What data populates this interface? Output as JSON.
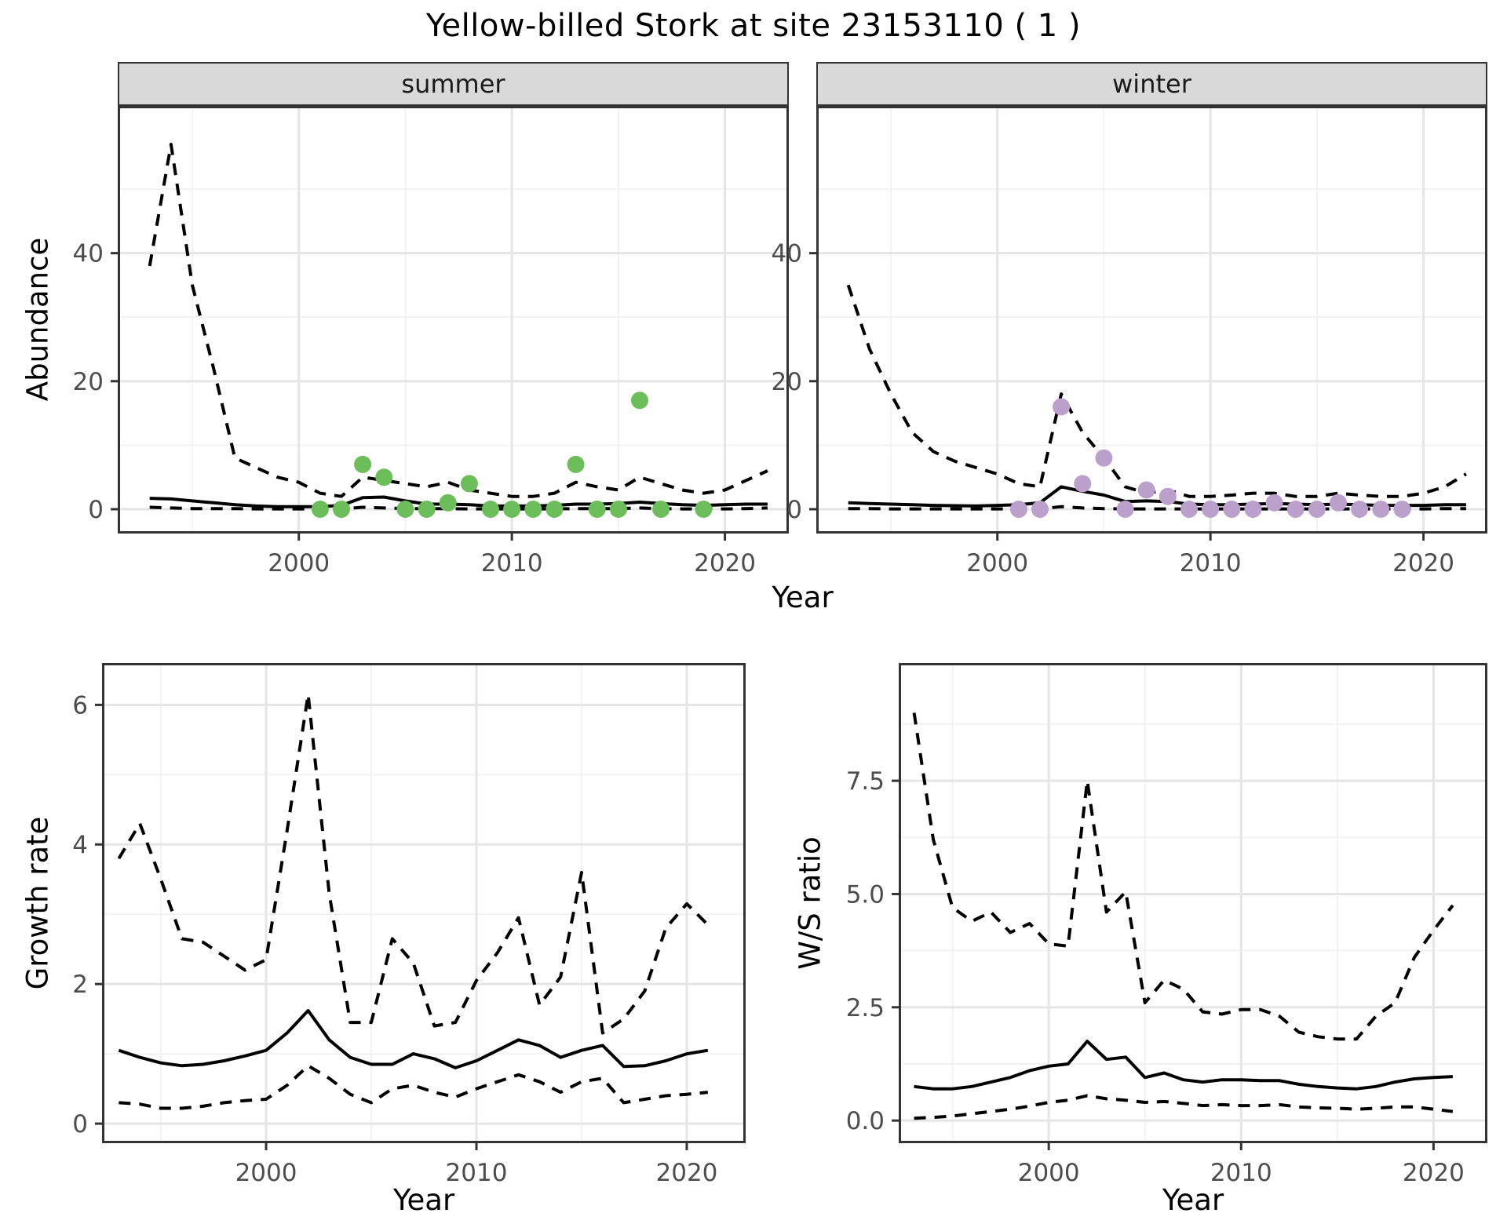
{
  "title": "Yellow-billed Stork at site 23153110 ( 1 )",
  "colors": {
    "panel_bg": "#ffffff",
    "grid_major": "#e5e5e5",
    "grid_minor": "#f0f0f0",
    "border": "#333333",
    "line": "#000000",
    "strip_bg": "#d9d9d9",
    "point_summer": "#6cbe5b",
    "point_winter": "#bca0cc"
  },
  "top_row": {
    "ylabel": "Abundance",
    "xlabel": "Year",
    "facets": [
      "summer",
      "winter"
    ]
  },
  "bottom_row": {
    "left_ylabel": "Growth rate",
    "left_xlabel": "Year",
    "right_ylabel": "W/S ratio",
    "right_xlabel": "Year"
  },
  "chart_data": [
    {
      "id": "abundance-summer",
      "type": "line",
      "facet": "summer",
      "title": "Abundance - summer facet",
      "xlabel": "Year",
      "ylabel": "Abundance",
      "xlim": [
        1991.5,
        2023
      ],
      "ylim": [
        -3.8,
        63
      ],
      "xticks": [
        2000,
        2010,
        2020
      ],
      "xtick_labels": [
        "2000",
        "2010",
        "2020"
      ],
      "xminor": [
        1995,
        2005,
        2015
      ],
      "yticks": [
        0,
        20,
        40
      ],
      "ytick_labels": [
        "0",
        "20",
        "40"
      ],
      "yminor": [
        10,
        30,
        50
      ],
      "series": [
        {
          "name": "upper_ci",
          "style": "dashed",
          "x": [
            1993,
            1994,
            1995,
            1996,
            1997,
            1998,
            1999,
            2000,
            2001,
            2002,
            2003,
            2004,
            2005,
            2006,
            2007,
            2008,
            2009,
            2010,
            2011,
            2012,
            2013,
            2014,
            2015,
            2016,
            2017,
            2018,
            2019,
            2020,
            2021,
            2022
          ],
          "y": [
            38,
            57,
            35,
            22,
            8,
            6.5,
            5,
            4.2,
            2.5,
            2,
            5,
            4.5,
            4,
            3.5,
            4.2,
            3,
            2.5,
            2,
            2,
            2.5,
            4.2,
            3.5,
            3,
            5,
            4,
            3,
            2.5,
            3,
            4.5,
            6
          ]
        },
        {
          "name": "median",
          "style": "solid",
          "x": [
            1993,
            1994,
            1995,
            1996,
            1997,
            1998,
            1999,
            2000,
            2001,
            2002,
            2003,
            2004,
            2005,
            2006,
            2007,
            2008,
            2009,
            2010,
            2011,
            2012,
            2013,
            2014,
            2015,
            2016,
            2017,
            2018,
            2019,
            2020,
            2021,
            2022
          ],
          "y": [
            1.7,
            1.6,
            1.3,
            1.0,
            0.7,
            0.5,
            0.4,
            0.4,
            0.4,
            0.6,
            1.8,
            1.9,
            1.3,
            0.8,
            0.8,
            0.7,
            0.5,
            0.5,
            0.5,
            0.6,
            0.8,
            0.8,
            0.9,
            1.1,
            0.9,
            0.7,
            0.6,
            0.7,
            0.8,
            0.8
          ]
        },
        {
          "name": "lower_ci",
          "style": "dashed",
          "x": [
            1993,
            1994,
            1995,
            1996,
            1997,
            1998,
            1999,
            2000,
            2001,
            2002,
            2003,
            2004,
            2005,
            2006,
            2007,
            2008,
            2009,
            2010,
            2011,
            2012,
            2013,
            2014,
            2015,
            2016,
            2017,
            2018,
            2019,
            2020,
            2021,
            2022
          ],
          "y": [
            0.3,
            0.2,
            0.1,
            0.1,
            0.1,
            0.05,
            0.05,
            0.05,
            0.05,
            0.05,
            0.3,
            0.2,
            0.1,
            0.1,
            0.1,
            0.05,
            0.05,
            0.05,
            0.05,
            0.05,
            0.1,
            0.1,
            0.1,
            0.2,
            0.1,
            0.05,
            0.05,
            0.05,
            0.1,
            0.2
          ]
        }
      ],
      "points": {
        "name": "observed-counts-summer",
        "color": "#6cbe5b",
        "x": [
          2001,
          2002,
          2003,
          2004,
          2005,
          2006,
          2007,
          2008,
          2009,
          2010,
          2011,
          2012,
          2013,
          2014,
          2015,
          2016,
          2017,
          2019
        ],
        "y": [
          0,
          0,
          7,
          5,
          0,
          0,
          1,
          4,
          0,
          0,
          0,
          0,
          7,
          0,
          0,
          17,
          0,
          0
        ]
      }
    },
    {
      "id": "abundance-winter",
      "type": "line",
      "facet": "winter",
      "title": "Abundance - winter facet",
      "xlabel": "Year",
      "ylabel": "Abundance",
      "xlim": [
        1991.5,
        2023
      ],
      "ylim": [
        -3.8,
        63
      ],
      "xticks": [
        2000,
        2010,
        2020
      ],
      "xtick_labels": [
        "2000",
        "2010",
        "2020"
      ],
      "xminor": [
        1995,
        2005,
        2015
      ],
      "yticks": [
        0,
        20,
        40
      ],
      "ytick_labels": [
        "0",
        "20",
        "40"
      ],
      "yminor": [
        10,
        30,
        50
      ],
      "series": [
        {
          "name": "upper_ci",
          "style": "dashed",
          "x": [
            1993,
            1994,
            1995,
            1996,
            1997,
            1998,
            1999,
            2000,
            2001,
            2002,
            2003,
            2004,
            2005,
            2006,
            2007,
            2008,
            2009,
            2010,
            2011,
            2012,
            2013,
            2014,
            2015,
            2016,
            2017,
            2018,
            2019,
            2020,
            2021,
            2022
          ],
          "y": [
            35,
            25,
            18,
            12,
            9,
            7.5,
            6.5,
            5.5,
            4,
            3.5,
            18,
            12,
            8,
            3.5,
            2.5,
            3,
            2,
            2,
            2.2,
            2.5,
            2.5,
            2,
            2,
            2.5,
            2.2,
            2,
            2,
            2.5,
            3.5,
            5.5
          ]
        },
        {
          "name": "median",
          "style": "solid",
          "x": [
            1993,
            1994,
            1995,
            1996,
            1997,
            1998,
            1999,
            2000,
            2001,
            2002,
            2003,
            2004,
            2005,
            2006,
            2007,
            2008,
            2009,
            2010,
            2011,
            2012,
            2013,
            2014,
            2015,
            2016,
            2017,
            2018,
            2019,
            2020,
            2021,
            2022
          ],
          "y": [
            1.0,
            0.9,
            0.8,
            0.7,
            0.6,
            0.55,
            0.5,
            0.6,
            0.7,
            1.0,
            3.5,
            2.8,
            2.2,
            1.2,
            1.3,
            1.2,
            0.8,
            0.7,
            0.7,
            0.8,
            0.9,
            0.8,
            0.7,
            0.8,
            0.7,
            0.6,
            0.6,
            0.6,
            0.7,
            0.7
          ]
        },
        {
          "name": "lower_ci",
          "style": "dashed",
          "x": [
            1993,
            1994,
            1995,
            1996,
            1997,
            1998,
            1999,
            2000,
            2001,
            2002,
            2003,
            2004,
            2005,
            2006,
            2007,
            2008,
            2009,
            2010,
            2011,
            2012,
            2013,
            2014,
            2015,
            2016,
            2017,
            2018,
            2019,
            2020,
            2021,
            2022
          ],
          "y": [
            0.1,
            0.1,
            0.05,
            0.05,
            0.05,
            0.05,
            0.05,
            0.05,
            0.05,
            0.05,
            0.4,
            0.2,
            0.1,
            0.05,
            0.05,
            0.05,
            0.05,
            0.05,
            0.05,
            0.05,
            0.05,
            0.05,
            0.05,
            0.05,
            0.05,
            0.05,
            0.05,
            0.05,
            0.1,
            0.1
          ]
        }
      ],
      "points": {
        "name": "observed-counts-winter",
        "color": "#bca0cc",
        "x": [
          2001,
          2002,
          2003,
          2004,
          2005,
          2006,
          2007,
          2008,
          2009,
          2010,
          2011,
          2012,
          2013,
          2014,
          2015,
          2016,
          2017,
          2018,
          2019
        ],
        "y": [
          0,
          0,
          16,
          4,
          8,
          0,
          3,
          2,
          0,
          0,
          0,
          0,
          1,
          0,
          0,
          1,
          0,
          0,
          0
        ]
      }
    },
    {
      "id": "growth-rate",
      "type": "line",
      "title": "Growth rate",
      "xlabel": "Year",
      "ylabel": "Growth rate",
      "xlim": [
        1992.2,
        2022.8
      ],
      "ylim": [
        -0.28,
        6.6
      ],
      "xticks": [
        2000,
        2010,
        2020
      ],
      "xtick_labels": [
        "2000",
        "2010",
        "2020"
      ],
      "xminor": [
        1995,
        2005,
        2015
      ],
      "yticks": [
        0,
        2,
        4,
        6
      ],
      "ytick_labels": [
        "0",
        "2",
        "4",
        "6"
      ],
      "yminor": [
        1,
        3,
        5
      ],
      "series": [
        {
          "name": "upper_ci",
          "style": "dashed",
          "x": [
            1993,
            1994,
            1995,
            1996,
            1997,
            1998,
            1999,
            2000,
            2001,
            2002,
            2003,
            2004,
            2005,
            2006,
            2007,
            2008,
            2009,
            2010,
            2011,
            2012,
            2013,
            2014,
            2015,
            2016,
            2017,
            2018,
            2019,
            2020,
            2021
          ],
          "y": [
            3.8,
            4.3,
            3.5,
            2.65,
            2.6,
            2.4,
            2.2,
            2.35,
            4.2,
            6.15,
            3.3,
            1.45,
            1.45,
            2.65,
            2.3,
            1.4,
            1.45,
            2.05,
            2.45,
            2.95,
            1.7,
            2.1,
            3.6,
            1.3,
            1.5,
            1.9,
            2.8,
            3.15,
            2.85
          ]
        },
        {
          "name": "median",
          "style": "solid",
          "x": [
            1993,
            1994,
            1995,
            1996,
            1997,
            1998,
            1999,
            2000,
            2001,
            2002,
            2003,
            2004,
            2005,
            2006,
            2007,
            2008,
            2009,
            2010,
            2011,
            2012,
            2013,
            2014,
            2015,
            2016,
            2017,
            2018,
            2019,
            2020,
            2021
          ],
          "y": [
            1.05,
            0.95,
            0.87,
            0.83,
            0.85,
            0.9,
            0.97,
            1.05,
            1.3,
            1.62,
            1.2,
            0.95,
            0.85,
            0.85,
            1.0,
            0.93,
            0.8,
            0.9,
            1.05,
            1.2,
            1.12,
            0.95,
            1.05,
            1.12,
            0.82,
            0.83,
            0.9,
            1.0,
            1.05
          ]
        },
        {
          "name": "lower_ci",
          "style": "dashed",
          "x": [
            1993,
            1994,
            1995,
            1996,
            1997,
            1998,
            1999,
            2000,
            2001,
            2002,
            2003,
            2004,
            2005,
            2006,
            2007,
            2008,
            2009,
            2010,
            2011,
            2012,
            2013,
            2014,
            2015,
            2016,
            2017,
            2018,
            2019,
            2020,
            2021
          ],
          "y": [
            0.3,
            0.28,
            0.22,
            0.22,
            0.25,
            0.3,
            0.33,
            0.35,
            0.55,
            0.83,
            0.65,
            0.42,
            0.3,
            0.5,
            0.55,
            0.45,
            0.38,
            0.5,
            0.6,
            0.7,
            0.6,
            0.45,
            0.6,
            0.65,
            0.3,
            0.35,
            0.4,
            0.42,
            0.45
          ]
        }
      ]
    },
    {
      "id": "ws-ratio",
      "type": "line",
      "title": "W/S ratio",
      "xlabel": "Year",
      "ylabel": "W/S ratio",
      "xlim": [
        1992.2,
        2022.8
      ],
      "ylim": [
        -0.5,
        10.1
      ],
      "xticks": [
        2000,
        2010,
        2020
      ],
      "xtick_labels": [
        "2000",
        "2010",
        "2020"
      ],
      "xminor": [
        1995,
        2005,
        2015
      ],
      "yticks": [
        0,
        2.5,
        5,
        7.5
      ],
      "ytick_labels": [
        "0.0",
        "2.5",
        "5.0",
        "7.5"
      ],
      "yminor": [
        1.25,
        3.75,
        6.25,
        8.75
      ],
      "series": [
        {
          "name": "upper_ci",
          "style": "dashed",
          "x": [
            1993,
            1994,
            1995,
            1996,
            1997,
            1998,
            1999,
            2000,
            2001,
            2002,
            2003,
            2004,
            2005,
            2006,
            2007,
            2008,
            2009,
            2010,
            2011,
            2012,
            2013,
            2014,
            2015,
            2016,
            2017,
            2018,
            2019,
            2020,
            2021
          ],
          "y": [
            9.0,
            6.2,
            4.7,
            4.4,
            4.6,
            4.15,
            4.35,
            3.9,
            3.85,
            7.5,
            4.6,
            5.05,
            2.6,
            3.1,
            2.9,
            2.4,
            2.35,
            2.45,
            2.45,
            2.3,
            1.95,
            1.85,
            1.8,
            1.8,
            2.3,
            2.6,
            3.6,
            4.2,
            4.75
          ]
        },
        {
          "name": "median",
          "style": "solid",
          "x": [
            1993,
            1994,
            1995,
            1996,
            1997,
            1998,
            1999,
            2000,
            2001,
            2002,
            2003,
            2004,
            2005,
            2006,
            2007,
            2008,
            2009,
            2010,
            2011,
            2012,
            2013,
            2014,
            2015,
            2016,
            2017,
            2018,
            2019,
            2020,
            2021
          ],
          "y": [
            0.75,
            0.7,
            0.7,
            0.75,
            0.85,
            0.95,
            1.1,
            1.2,
            1.25,
            1.75,
            1.35,
            1.4,
            0.95,
            1.05,
            0.9,
            0.85,
            0.9,
            0.9,
            0.88,
            0.88,
            0.8,
            0.75,
            0.72,
            0.7,
            0.75,
            0.85,
            0.92,
            0.95,
            0.97
          ]
        },
        {
          "name": "lower_ci",
          "style": "dashed",
          "x": [
            1993,
            1994,
            1995,
            1996,
            1997,
            1998,
            1999,
            2000,
            2001,
            2002,
            2003,
            2004,
            2005,
            2006,
            2007,
            2008,
            2009,
            2010,
            2011,
            2012,
            2013,
            2014,
            2015,
            2016,
            2017,
            2018,
            2019,
            2020,
            2021
          ],
          "y": [
            0.05,
            0.07,
            0.1,
            0.15,
            0.2,
            0.25,
            0.32,
            0.4,
            0.45,
            0.55,
            0.48,
            0.45,
            0.4,
            0.42,
            0.38,
            0.33,
            0.35,
            0.33,
            0.33,
            0.35,
            0.3,
            0.28,
            0.27,
            0.25,
            0.27,
            0.3,
            0.3,
            0.25,
            0.2
          ]
        }
      ]
    }
  ]
}
